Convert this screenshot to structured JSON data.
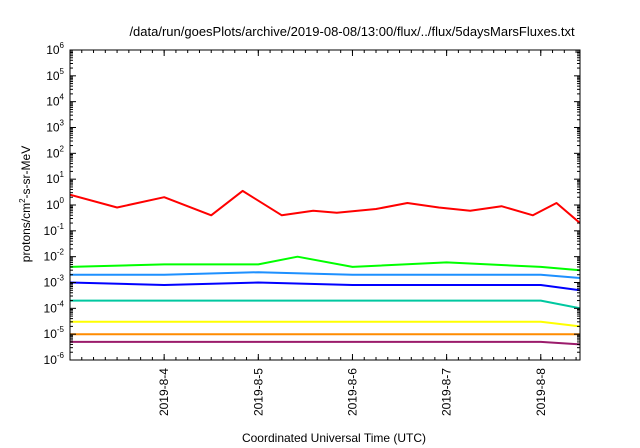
{
  "chart_data": {
    "type": "line",
    "title": "/data/run/goesPlots/archive/2019-08-08/13:00/flux/../flux/5daysMarsFluxes.txt",
    "xlabel": "Coordinated Universal Time (UTC)",
    "ylabel": {
      "prefix": "protons/cm",
      "sup": "2",
      "suffix": "-s-sr-MeV"
    },
    "yscale": "log",
    "ylim": [
      1e-06,
      1000000.0
    ],
    "xlim": [
      "2019-08-03T00:00",
      "2019-08-08T10:00"
    ],
    "grid": false,
    "legend": "none",
    "y_ticks": [
      {
        "base": "10",
        "exp": "-6"
      },
      {
        "base": "10",
        "exp": "-5"
      },
      {
        "base": "10",
        "exp": "-4"
      },
      {
        "base": "10",
        "exp": "-3"
      },
      {
        "base": "10",
        "exp": "-2"
      },
      {
        "base": "10",
        "exp": "-1"
      },
      {
        "base": "10",
        "exp": "0"
      },
      {
        "base": "10",
        "exp": "1"
      },
      {
        "base": "10",
        "exp": "2"
      },
      {
        "base": "10",
        "exp": "3"
      },
      {
        "base": "10",
        "exp": "4"
      },
      {
        "base": "10",
        "exp": "5"
      },
      {
        "base": "10",
        "exp": "6"
      }
    ],
    "x_ticks": [
      {
        "label": "2019-8-4",
        "time": "2019-08-04T00:00"
      },
      {
        "label": "2019-8-5",
        "time": "2019-08-05T00:00"
      },
      {
        "label": "2019-8-6",
        "time": "2019-08-06T00:00"
      },
      {
        "label": "2019-8-7",
        "time": "2019-08-07T00:00"
      },
      {
        "label": "2019-8-8",
        "time": "2019-08-08T00:00"
      }
    ],
    "series": [
      {
        "color": "#ff0000",
        "x": [
          "2019-08-03T00:00",
          "2019-08-03T12:00",
          "2019-08-04T00:00",
          "2019-08-04T12:00",
          "2019-08-04T20:00",
          "2019-08-05T06:00",
          "2019-08-05T14:00",
          "2019-08-05T20:00",
          "2019-08-06T06:00",
          "2019-08-06T14:00",
          "2019-08-06T22:00",
          "2019-08-07T06:00",
          "2019-08-07T14:00",
          "2019-08-07T22:00",
          "2019-08-08T04:00",
          "2019-08-08T10:00"
        ],
        "y": [
          2.5,
          0.8,
          2.0,
          0.4,
          3.5,
          0.4,
          0.6,
          0.5,
          0.7,
          1.2,
          0.8,
          0.6,
          0.9,
          0.4,
          1.2,
          0.2
        ]
      },
      {
        "color": "#00ff00",
        "x": [
          "2019-08-03T00:00",
          "2019-08-04T00:00",
          "2019-08-05T00:00",
          "2019-08-05T10:00",
          "2019-08-06T00:00",
          "2019-08-07T00:00",
          "2019-08-08T00:00",
          "2019-08-08T10:00"
        ],
        "y": [
          0.004,
          0.005,
          0.005,
          0.01,
          0.004,
          0.006,
          0.004,
          0.003
        ]
      },
      {
        "color": "#1e90ff",
        "x": [
          "2019-08-03T00:00",
          "2019-08-04T00:00",
          "2019-08-05T00:00",
          "2019-08-06T00:00",
          "2019-08-07T00:00",
          "2019-08-08T00:00",
          "2019-08-08T10:00"
        ],
        "y": [
          0.002,
          0.002,
          0.0025,
          0.002,
          0.002,
          0.002,
          0.0015
        ]
      },
      {
        "color": "#0000ff",
        "x": [
          "2019-08-03T00:00",
          "2019-08-04T00:00",
          "2019-08-05T00:00",
          "2019-08-06T00:00",
          "2019-08-07T00:00",
          "2019-08-08T00:00",
          "2019-08-08T10:00"
        ],
        "y": [
          0.001,
          0.0008,
          0.001,
          0.0008,
          0.0008,
          0.0008,
          0.0005
        ]
      },
      {
        "color": "#00c8a0",
        "x": [
          "2019-08-03T00:00",
          "2019-08-04T00:00",
          "2019-08-05T00:00",
          "2019-08-06T00:00",
          "2019-08-07T00:00",
          "2019-08-08T00:00",
          "2019-08-08T10:00"
        ],
        "y": [
          0.0002,
          0.0002,
          0.0002,
          0.0002,
          0.0002,
          0.0002,
          0.0001
        ]
      },
      {
        "color": "#ffff00",
        "x": [
          "2019-08-03T00:00",
          "2019-08-04T00:00",
          "2019-08-05T00:00",
          "2019-08-06T00:00",
          "2019-08-07T00:00",
          "2019-08-08T00:00",
          "2019-08-08T10:00"
        ],
        "y": [
          3e-05,
          3e-05,
          3e-05,
          3e-05,
          3e-05,
          3e-05,
          2e-05
        ]
      },
      {
        "color": "#ff8c00",
        "x": [
          "2019-08-03T00:00",
          "2019-08-04T00:00",
          "2019-08-05T00:00",
          "2019-08-06T00:00",
          "2019-08-07T00:00",
          "2019-08-08T00:00",
          "2019-08-08T10:00"
        ],
        "y": [
          1e-05,
          1e-05,
          1e-05,
          1e-05,
          1e-05,
          1e-05,
          1e-05
        ]
      },
      {
        "color": "#9b1b6b",
        "x": [
          "2019-08-03T00:00",
          "2019-08-04T00:00",
          "2019-08-05T00:00",
          "2019-08-06T00:00",
          "2019-08-07T00:00",
          "2019-08-08T00:00",
          "2019-08-08T10:00"
        ],
        "y": [
          5e-06,
          5e-06,
          5e-06,
          5e-06,
          5e-06,
          5e-06,
          4e-06
        ]
      }
    ]
  }
}
